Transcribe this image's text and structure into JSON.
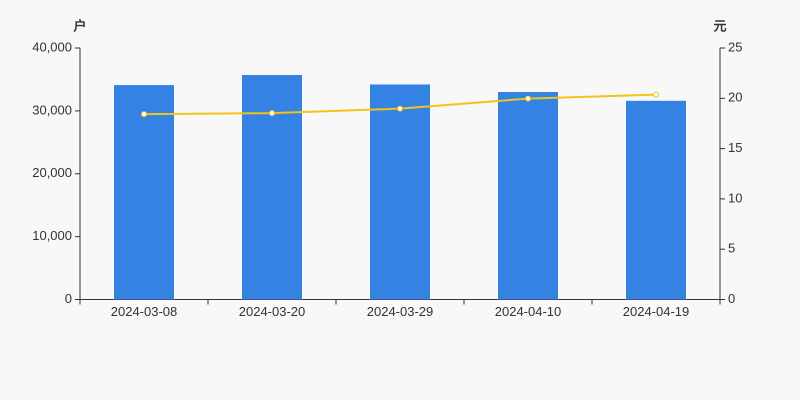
{
  "chart_data": {
    "type": "bar-line",
    "y_label": "户",
    "y2_label": "元",
    "categories": [
      "2024-03-08",
      "2024-03-20",
      "2024-03-29",
      "2024-04-10",
      "2024-04-19"
    ],
    "series": [
      {
        "type": "bar",
        "color": "#3482e3",
        "values": [
          34100,
          35700,
          34200,
          33000,
          31600
        ]
      },
      {
        "type": "line",
        "axis": "y2",
        "color": "#f2c318",
        "values": [
          18.43,
          18.53,
          18.97,
          19.97,
          20.37
        ]
      }
    ],
    "ylim": [
      0,
      40000
    ],
    "yticks": [
      0,
      {
        "value": 10000,
        "label": "10,000"
      },
      {
        "value": 20000,
        "label": "20,000"
      },
      {
        "value": 30000,
        "label": "30,000"
      },
      {
        "value": 40000,
        "label": "40,000"
      }
    ],
    "y2lim": [
      0,
      25
    ],
    "y2ticks": [
      0,
      5,
      10,
      15,
      20,
      25
    ],
    "grid": false
  }
}
